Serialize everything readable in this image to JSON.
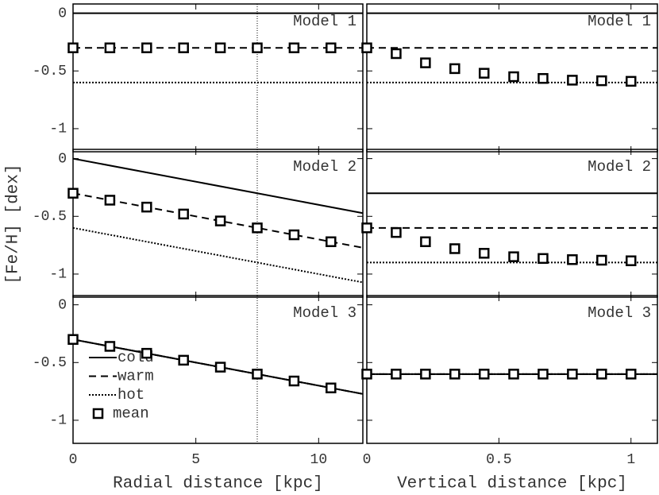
{
  "chart_data": [
    {
      "type": "line",
      "title": "Model 1",
      "ylabel": "[Fe/H] [dex]",
      "xlim": [
        0,
        11.8
      ],
      "xticks": [
        0,
        5,
        10
      ],
      "ylim": [
        -1.2,
        0.08
      ],
      "yticks": [
        0,
        -0.5,
        -1
      ],
      "ytick_labels": true,
      "xtick_labels": false,
      "vline": 7.5,
      "series": [
        {
          "color": "#000",
          "style": "solid",
          "x": [
            0,
            11.8
          ],
          "values": [
            0,
            0
          ]
        },
        {
          "color": "#000",
          "style": "dashed",
          "x": [
            0,
            11.8
          ],
          "values": [
            -0.3,
            -0.3
          ]
        },
        {
          "color": "#000",
          "style": "dotted",
          "x": [
            0,
            11.8
          ],
          "values": [
            -0.6,
            -0.6
          ]
        },
        {
          "color": "#000",
          "style": "none",
          "marker": "square",
          "x": [
            0,
            1.5,
            3,
            4.5,
            6,
            7.5,
            9,
            10.5
          ],
          "values": [
            -0.3,
            -0.3,
            -0.3,
            -0.3,
            -0.3,
            -0.3,
            -0.3,
            -0.3
          ]
        }
      ]
    },
    {
      "type": "line",
      "title": "Model 1",
      "xlim": [
        0,
        1.1
      ],
      "xticks": [
        0,
        0.5,
        1
      ],
      "ylim": [
        -1.2,
        0.08
      ],
      "yticks": [
        0,
        -0.5,
        -1
      ],
      "ytick_labels": false,
      "xtick_labels": false,
      "series": [
        {
          "color": "#000",
          "style": "solid",
          "x": [
            0,
            1.1
          ],
          "values": [
            0,
            0
          ]
        },
        {
          "color": "#000",
          "style": "dashed",
          "x": [
            0,
            1.1
          ],
          "values": [
            -0.3,
            -0.3
          ]
        },
        {
          "color": "#000",
          "style": "dotted",
          "x": [
            0,
            1.1
          ],
          "values": [
            -0.6,
            -0.6
          ]
        },
        {
          "color": "#000",
          "style": "none",
          "marker": "square",
          "x": [
            0,
            0.111,
            0.222,
            0.333,
            0.444,
            0.556,
            0.667,
            0.778,
            0.889,
            1
          ],
          "values": [
            -0.3,
            -0.35,
            -0.43,
            -0.48,
            -0.52,
            -0.55,
            -0.565,
            -0.58,
            -0.585,
            -0.59
          ]
        }
      ]
    },
    {
      "type": "line",
      "title": "Model 2",
      "xlim": [
        0,
        11.8
      ],
      "xticks": [
        0,
        5,
        10
      ],
      "ylim": [
        -1.2,
        0.08
      ],
      "yticks": [
        0,
        -0.5,
        -1
      ],
      "ytick_labels": true,
      "xtick_labels": false,
      "vline": 7.5,
      "series": [
        {
          "color": "#000",
          "style": "solid",
          "x": [
            0,
            11.8
          ],
          "values": [
            0,
            -0.472
          ]
        },
        {
          "color": "#000",
          "style": "dashed",
          "x": [
            0,
            11.8
          ],
          "values": [
            -0.3,
            -0.772
          ]
        },
        {
          "color": "#000",
          "style": "dotted",
          "x": [
            0,
            11.8
          ],
          "values": [
            -0.6,
            -1.072
          ]
        },
        {
          "color": "#000",
          "style": "none",
          "marker": "square",
          "x": [
            0,
            1.5,
            3,
            4.5,
            6,
            7.5,
            9,
            10.5
          ],
          "values": [
            -0.3,
            -0.36,
            -0.42,
            -0.48,
            -0.54,
            -0.6,
            -0.66,
            -0.72
          ]
        }
      ]
    },
    {
      "type": "line",
      "title": "Model 2",
      "xlim": [
        0,
        1.1
      ],
      "xticks": [
        0,
        0.5,
        1
      ],
      "ylim": [
        -1.2,
        0.08
      ],
      "yticks": [
        0,
        -0.5,
        -1
      ],
      "ytick_labels": false,
      "xtick_labels": false,
      "series": [
        {
          "color": "#000",
          "style": "solid",
          "x": [
            0,
            1.1
          ],
          "values": [
            -0.3,
            -0.3
          ]
        },
        {
          "color": "#000",
          "style": "dashed",
          "x": [
            0,
            1.1
          ],
          "values": [
            -0.6,
            -0.6
          ]
        },
        {
          "color": "#000",
          "style": "dotted",
          "x": [
            0,
            1.1
          ],
          "values": [
            -0.9,
            -0.9
          ]
        },
        {
          "color": "#000",
          "style": "none",
          "marker": "square",
          "x": [
            0,
            0.111,
            0.222,
            0.333,
            0.444,
            0.556,
            0.667,
            0.778,
            0.889,
            1
          ],
          "values": [
            -0.6,
            -0.64,
            -0.72,
            -0.78,
            -0.82,
            -0.85,
            -0.865,
            -0.875,
            -0.88,
            -0.885
          ]
        }
      ]
    },
    {
      "type": "line",
      "title": "Model 3",
      "xlabel": "Radial distance [kpc]",
      "xlim": [
        0,
        11.8
      ],
      "xticks": [
        0,
        5,
        10
      ],
      "ylim": [
        -1.2,
        0.08
      ],
      "yticks": [
        0,
        -0.5,
        -1
      ],
      "ytick_labels": true,
      "xtick_labels": true,
      "vline": 7.5,
      "legend": "lower left",
      "series": [
        {
          "name": "cold",
          "color": "#000",
          "style": "solid",
          "x": [
            0,
            11.8
          ],
          "values": [
            -0.3,
            -0.772
          ]
        },
        {
          "name": "warm",
          "color": "#000",
          "style": "dashed",
          "x": [
            0,
            11.8
          ],
          "values": [
            -0.3,
            -0.772
          ]
        },
        {
          "name": "hot",
          "color": "#000",
          "style": "dotted",
          "x": [
            0,
            11.8
          ],
          "values": [
            -0.3,
            -0.772
          ]
        },
        {
          "name": "mean",
          "color": "#000",
          "style": "none",
          "marker": "square",
          "x": [
            0,
            1.5,
            3,
            4.5,
            6,
            7.5,
            9,
            10.5
          ],
          "values": [
            -0.3,
            -0.36,
            -0.42,
            -0.48,
            -0.54,
            -0.6,
            -0.66,
            -0.72
          ]
        }
      ]
    },
    {
      "type": "line",
      "title": "Model 3",
      "xlabel": "Vertical distance [kpc]",
      "xlim": [
        0,
        1.1
      ],
      "xticks": [
        0,
        0.5,
        1
      ],
      "ylim": [
        -1.2,
        0.08
      ],
      "yticks": [
        0,
        -0.5,
        -1
      ],
      "ytick_labels": false,
      "xtick_labels": true,
      "series": [
        {
          "color": "#000",
          "style": "solid",
          "x": [
            0,
            1.1
          ],
          "values": [
            -0.6,
            -0.6
          ]
        },
        {
          "color": "#000",
          "style": "dashed",
          "x": [
            0,
            1.1
          ],
          "values": [
            -0.6,
            -0.6
          ]
        },
        {
          "color": "#000",
          "style": "dotted",
          "x": [
            0,
            1.1
          ],
          "values": [
            -0.6,
            -0.6
          ]
        },
        {
          "color": "#000",
          "style": "none",
          "marker": "square",
          "x": [
            0,
            0.111,
            0.222,
            0.333,
            0.444,
            0.556,
            0.667,
            0.778,
            0.889,
            1
          ],
          "values": [
            -0.6,
            -0.6,
            -0.6,
            -0.6,
            -0.6,
            -0.6,
            -0.6,
            -0.6,
            -0.6,
            -0.6
          ]
        }
      ]
    }
  ]
}
